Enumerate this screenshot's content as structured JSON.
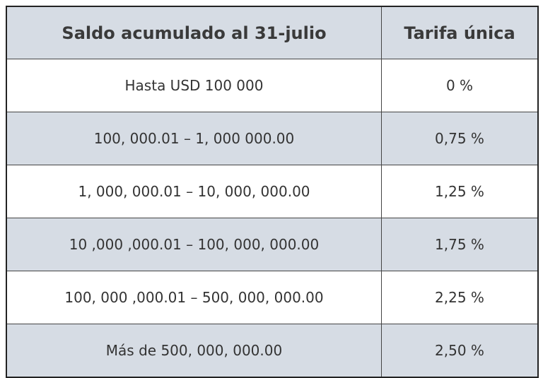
{
  "table": {
    "header": [
      "Saldo acumulado al 31-julio",
      "Tarifa única"
    ],
    "rows": [
      [
        "Hasta USD 100 000",
        "0 %"
      ],
      [
        "100, 000.01 – 1, 000 000.00",
        "0,75 %"
      ],
      [
        "1, 000, 000.01 – 10, 000, 000.00",
        "1,25 %"
      ],
      [
        "10 ,000 ,000.01 – 100, 000, 000.00",
        "1,75 %"
      ],
      [
        "100, 000 ,000.01 – 500, 000, 000.00",
        "2,25 %"
      ],
      [
        "Más de 500, 000, 000.00",
        "2,50 %"
      ]
    ]
  }
}
